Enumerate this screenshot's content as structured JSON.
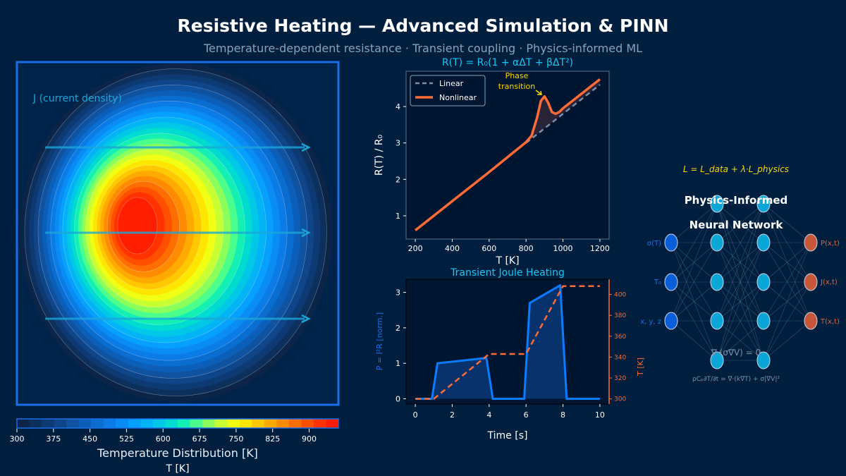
{
  "header": {
    "title": "Resistive Heating — Advanced Simulation & PINN",
    "subtitle": "Temperature-dependent resistance · Transient coupling · Physics-informed ML"
  },
  "colors": {
    "accent": "#1a6fe8",
    "orange": "#ff6b35",
    "cyan": "#00c8f0",
    "yellow": "#ffd700",
    "panel": "#001a33"
  },
  "chart_data": [
    {
      "type": "heatmap",
      "title": "Temperature Distribution [K]",
      "annotation": "J (current density)",
      "colorbar": {
        "label": "T [K]",
        "ticks": [
          "300",
          "375",
          "450",
          "525",
          "600",
          "675",
          "750",
          "825",
          "900"
        ],
        "range": [
          300,
          960
        ],
        "levels": [
          "#0b2447",
          "#0d2f5c",
          "#0e3a73",
          "#0f4589",
          "#0f52a0",
          "#0c5fb8",
          "#0a6dd0",
          "#0b7ce6",
          "#0a8cf5",
          "#06a0ff",
          "#02b4f5",
          "#00c8e6",
          "#00dcd0",
          "#14f0b4",
          "#4cff8c",
          "#8cff5a",
          "#c8ff32",
          "#f0ff14",
          "#ffe600",
          "#ffc800",
          "#ffaa00",
          "#ff8c00",
          "#ff6e00",
          "#ff5000",
          "#ff3200",
          "#ff1e00"
        ]
      },
      "hotspot_K": 960
    },
    {
      "type": "line",
      "title": "R(T) = R₀(1 + αΔT + βΔT²)",
      "xlabel": "T [K]",
      "ylabel": "R(T) / R₀",
      "xlim": [
        150,
        1250
      ],
      "ylim": [
        0.36,
        4.97
      ],
      "xticks": [
        "200",
        "400",
        "600",
        "800",
        "1000",
        "1200"
      ],
      "xtick_values": [
        200,
        400,
        600,
        800,
        1000,
        1200
      ],
      "yticks": [
        "1",
        "2",
        "3",
        "4"
      ],
      "ytick_values": [
        1,
        2,
        3,
        4
      ],
      "legend": {
        "position": "top-left",
        "entries": [
          "Linear",
          "Nonlinear"
        ]
      },
      "annotation": "Phase\ntransition",
      "annotation_lines": [
        "Phase",
        "transition"
      ],
      "series": [
        {
          "name": "Linear",
          "style": "dashed",
          "x": [
            800,
            1200
          ],
          "y": [
            3.0,
            4.6
          ]
        },
        {
          "name": "Nonlinear",
          "style": "solid",
          "x": [
            200,
            400,
            600,
            800,
            830,
            860,
            880,
            900,
            920,
            940,
            960,
            980,
            1000,
            1100,
            1200
          ],
          "y": [
            0.6,
            1.4,
            2.2,
            3.02,
            3.2,
            3.7,
            4.15,
            4.28,
            4.1,
            3.85,
            3.8,
            3.85,
            3.95,
            4.35,
            4.75
          ]
        }
      ]
    },
    {
      "type": "line",
      "title": "Transient Joule Heating",
      "xlabel": "Time [s]",
      "ylabel": "P = I²R [norm.]",
      "ylabel_right": "T [K]",
      "xlim": [
        -0.5,
        10.5
      ],
      "ylim": [
        -0.15,
        3.37
      ],
      "ylim_right": [
        295,
        414.6
      ],
      "xticks": [
        "0",
        "2",
        "4",
        "6",
        "8",
        "10"
      ],
      "xtick_values": [
        0,
        2,
        4,
        6,
        8,
        10
      ],
      "yticks": [
        "0",
        "1",
        "2",
        "3"
      ],
      "ytick_values": [
        0,
        1,
        2,
        3
      ],
      "yticks_right": [
        "300",
        "320",
        "340",
        "360",
        "380",
        "400"
      ],
      "ytick_values_right": [
        300,
        320,
        340,
        360,
        380,
        400
      ],
      "series": [
        {
          "name": "Power",
          "axis": "left",
          "x": [
            0,
            0.9,
            1.2,
            3.85,
            4.2,
            5.9,
            6.2,
            7.85,
            8.2,
            10
          ],
          "y": [
            0,
            0,
            1.0,
            1.15,
            0,
            0,
            2.7,
            3.2,
            0,
            0
          ]
        },
        {
          "name": "Temperature",
          "axis": "right",
          "style": "dashed",
          "x": [
            0,
            1,
            4,
            6,
            8,
            10
          ],
          "y": [
            300,
            300,
            343,
            343,
            408,
            408
          ]
        }
      ]
    }
  ],
  "pinn": {
    "loss": "L = L_data + λ·L_physics",
    "title_line1": "Physics-Informed",
    "title_line2": "Neural Network",
    "inputs": [
      "σ(T)",
      "T₀",
      "x, y, z"
    ],
    "outputs": [
      "P(x,t)",
      "J(x,t)",
      "T(x,t)"
    ],
    "hidden_layers": [
      5,
      5
    ],
    "eq1": "∇·(σ∇V) = 0",
    "eq2": "ρCₚ∂T/∂t = ∇·(k∇T) + σ|∇V|²"
  }
}
